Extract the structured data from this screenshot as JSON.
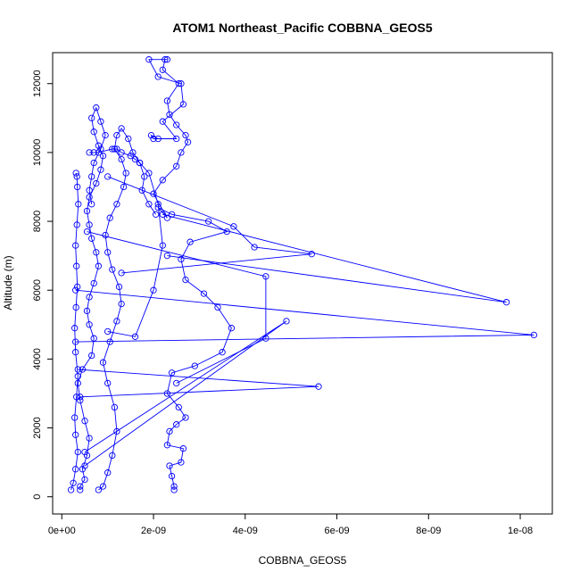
{
  "chart_data": {
    "type": "scatter",
    "title": "ATOM1 Northeast_Pacific COBBNA_GEOS5",
    "xlabel": "COBBNA_GEOS5",
    "ylabel": "Altitude (m)",
    "xlim": [
      -2e-10,
      1.07e-08
    ],
    "ylim": [
      -500,
      12900
    ],
    "x_ticks": [
      0,
      2e-09,
      4e-09,
      6e-09,
      8e-09,
      1e-08
    ],
    "x_tick_labels": [
      "0e+00",
      "2e-09",
      "4e-09",
      "6e-09",
      "8e-09",
      "1e-08"
    ],
    "y_ticks": [
      0,
      2000,
      4000,
      6000,
      8000,
      10000,
      12000
    ],
    "y_tick_labels": [
      "0",
      "2000",
      "4000",
      "6000",
      "8000",
      "10000",
      "12000"
    ],
    "grid": false,
    "legend": "none",
    "marker": "open-circle",
    "connected": true,
    "color": "#0000ff",
    "series": [
      {
        "x": [
          2.45e-09,
          2.45e-09,
          2.4e-09,
          2.35e-09,
          2.6e-09,
          2.65e-09,
          2.3e-09,
          2.35e-09,
          2.5e-09,
          2.7e-09,
          2.55e-09,
          2.3e-09,
          2.4e-09,
          2.9e-09,
          3.5e-09,
          3.7e-09,
          3.4e-09,
          3.1e-09,
          2.7e-09,
          2.6e-09,
          2.8e-09,
          3.6e-09,
          3.2e-09,
          2.4e-09,
          2.1e-09,
          2.3e-09,
          2e-09,
          2.2e-09,
          2.5e-09,
          2.6e-09,
          2.75e-09,
          2.7e-09,
          2.5e-09,
          2.35e-09,
          2.3e-09,
          2.55e-09,
          2.2e-09,
          2.25e-09,
          2.3e-09,
          1.9e-09,
          2.1e-09,
          2.6e-09,
          2.65e-09,
          2.2e-09,
          2.5e-09,
          2e-09,
          1.95e-09,
          2.1e-09
        ],
        "y": [
          200,
          300,
          600,
          900,
          1000,
          1400,
          1500,
          1900,
          2100,
          2300,
          2600,
          3000,
          3600,
          3800,
          4200,
          4900,
          5500,
          5900,
          6300,
          6900,
          7400,
          7700,
          8000,
          8200,
          8400,
          8100,
          8800,
          9200,
          9600,
          10000,
          10300,
          10500,
          10800,
          11100,
          11500,
          12000,
          12400,
          12700,
          12700,
          12700,
          12200,
          12000,
          11400,
          10900,
          10400,
          10400,
          10500,
          10400
        ]
      },
      {
        "x": [
          4e-10,
          4e-10,
          5e-10,
          4.5e-10,
          5.5e-10,
          6e-10,
          5e-10,
          4e-10,
          3.5e-10,
          4.5e-10,
          6.5e-10,
          7e-10,
          6e-10,
          5.5e-10,
          6e-10,
          7e-10,
          8e-10,
          7.5e-10,
          6.5e-10,
          6e-10,
          5.5e-10,
          6e-10,
          7.5e-10,
          8.5e-10,
          9e-10,
          8e-10,
          7e-10,
          6.5e-10,
          7.5e-10,
          8.5e-10,
          9.5e-10,
          8.5e-10,
          7e-10,
          6.5e-10,
          6e-10,
          6.5e-10
        ],
        "y": [
          200,
          300,
          500,
          800,
          1200,
          1700,
          2200,
          2800,
          3300,
          3700,
          4100,
          4600,
          5000,
          5400,
          5800,
          6200,
          6700,
          7100,
          7500,
          7900,
          8300,
          8700,
          9100,
          9500,
          9900,
          10200,
          10600,
          11000,
          11300,
          10900,
          10500,
          10100,
          9700,
          9300,
          8900,
          8500
        ]
      },
      {
        "x": [
          8e-10,
          9e-10,
          1e-09,
          1.1e-09,
          1.2e-09,
          1.15e-09,
          1e-09,
          9e-10,
          1.05e-09,
          1.2e-09,
          1.3e-09,
          1.25e-09,
          1.1e-09,
          1e-09,
          9.5e-10,
          1.05e-09,
          1.2e-09,
          1.35e-09,
          1.4e-09,
          1.3e-09,
          1.15e-09,
          1.2e-09,
          1.3e-09,
          1.45e-09,
          1.55e-09,
          1.7e-09,
          1.8e-09,
          1.75e-09,
          1.9e-09,
          2.05e-09
        ],
        "y": [
          200,
          300,
          700,
          1200,
          1900,
          2600,
          3300,
          3900,
          4500,
          5100,
          5600,
          6100,
          6600,
          7100,
          7600,
          8100,
          8500,
          9000,
          9400,
          9800,
          10100,
          10500,
          10700,
          10400,
          10000,
          9700,
          9300,
          8900,
          8500,
          8200
        ]
      },
      {
        "x": [
          2e-10,
          2.5e-10,
          3e-10,
          3.5e-10,
          3e-10,
          2.8e-10,
          3.2e-10,
          3.5e-10,
          3e-10,
          2.8e-10,
          3.1e-10,
          3.4e-10,
          3.2e-10,
          3e-10,
          3.3e-10,
          3.6e-10,
          3.4e-10,
          3.3e-10,
          3.1e-10
        ],
        "y": [
          200,
          400,
          800,
          1300,
          1800,
          2300,
          2900,
          3500,
          4200,
          4900,
          5500,
          6100,
          6700,
          7300,
          7900,
          8500,
          9000,
          9300,
          9400
        ]
      },
      {
        "x": [
          3e-10,
          1.03e-08,
          3e-10
        ],
        "y": [
          4500,
          4700,
          6000
        ]
      },
      {
        "x": [
          2.3e-09,
          9.7e-09,
          2.2e-09
        ],
        "y": [
          7000,
          5650,
          8200
        ]
      },
      {
        "x": [
          3.5e-10,
          5.6e-09,
          4e-10
        ],
        "y": [
          3700,
          3200,
          2900
        ]
      },
      {
        "x": [
          5e-10,
          4.9e-09,
          5e-10
        ],
        "y": [
          1300,
          5100,
          900
        ]
      },
      {
        "x": [
          5.5e-10,
          4.45e-09,
          4.45e-09,
          2.5e-09
        ],
        "y": [
          7700,
          6400,
          4600,
          3300
        ]
      },
      {
        "x": [
          1e-09,
          3.75e-09,
          4.2e-09,
          5.45e-09,
          1.3e-09
        ],
        "y": [
          9300,
          7850,
          7250,
          7050,
          6500
        ]
      },
      {
        "x": [
          1e-09,
          1.6e-09,
          2e-09,
          2.2e-09,
          2.1e-09,
          1.9e-09,
          1.7e-09,
          1.6e-09,
          1.5e-09,
          1.3e-09,
          1.2e-09,
          1.1e-09,
          8e-10,
          7e-10,
          6e-10
        ],
        "y": [
          4800,
          4650,
          6000,
          7300,
          8500,
          9400,
          9700,
          9800,
          9900,
          10000,
          10100,
          10100,
          10000,
          10000,
          10000
        ]
      }
    ]
  }
}
